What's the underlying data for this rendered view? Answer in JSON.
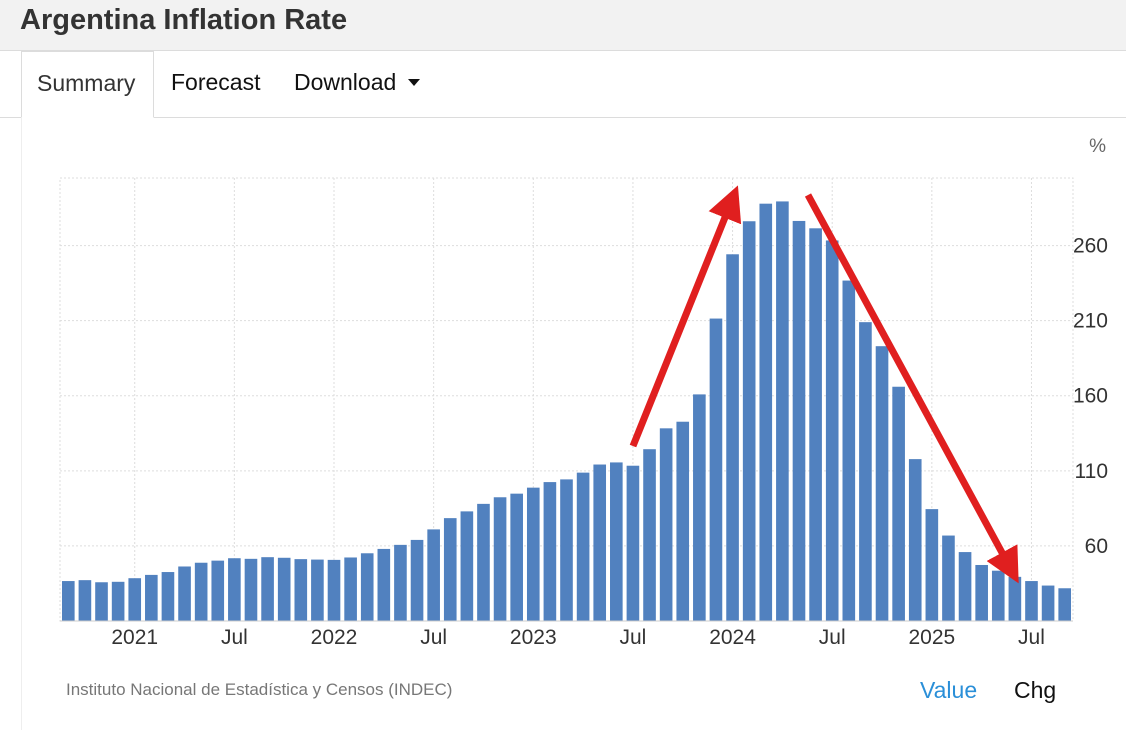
{
  "page": {
    "title": "Argentina Inflation Rate"
  },
  "tabs": {
    "summary": "Summary",
    "forecast": "Forecast",
    "download": "Download"
  },
  "footer": {
    "source": "Instituto Nacional de Estadística y Censos (INDEC)",
    "value_toggle": "Value",
    "chg_toggle": "Chg"
  },
  "colors": {
    "bar": "#5181bf",
    "arrow": "#e01f1f",
    "grid": "#dddddd",
    "value_link": "#2a8fd8"
  },
  "chart_data": {
    "type": "bar",
    "title": "Argentina Inflation Rate",
    "unit_label": "%",
    "ylabel": "%",
    "xlabel": "",
    "ylim": [
      10,
      305
    ],
    "yticks": [
      60,
      110,
      160,
      210,
      260
    ],
    "x_tick_labels": [
      {
        "label": "2021",
        "index": 4
      },
      {
        "label": "Jul",
        "index": 10
      },
      {
        "label": "2022",
        "index": 16
      },
      {
        "label": "Jul",
        "index": 22
      },
      {
        "label": "2023",
        "index": 28
      },
      {
        "label": "Jul",
        "index": 34
      },
      {
        "label": "2024",
        "index": 40
      },
      {
        "label": "Jul",
        "index": 46
      },
      {
        "label": "2025",
        "index": 52
      },
      {
        "label": "Jul",
        "index": 58
      }
    ],
    "categories": [
      "Sep 2020",
      "Oct 2020",
      "Nov 2020",
      "Dec 2020",
      "Jan 2021",
      "Feb 2021",
      "Mar 2021",
      "Apr 2021",
      "May 2021",
      "Jun 2021",
      "Jul 2021",
      "Aug 2021",
      "Sep 2021",
      "Oct 2021",
      "Nov 2021",
      "Dec 2021",
      "Jan 2022",
      "Feb 2022",
      "Mar 2022",
      "Apr 2022",
      "May 2022",
      "Jun 2022",
      "Jul 2022",
      "Aug 2022",
      "Sep 2022",
      "Oct 2022",
      "Nov 2022",
      "Dec 2022",
      "Jan 2023",
      "Feb 2023",
      "Mar 2023",
      "Apr 2023",
      "May 2023",
      "Jun 2023",
      "Jul 2023",
      "Aug 2023",
      "Sep 2023",
      "Oct 2023",
      "Nov 2023",
      "Dec 2023",
      "Jan 2024",
      "Feb 2024",
      "Mar 2024",
      "Apr 2024",
      "May 2024",
      "Jun 2024",
      "Jul 2024",
      "Aug 2024",
      "Sep 2024",
      "Oct 2024",
      "Nov 2024",
      "Dec 2024",
      "Jan 2025",
      "Feb 2025",
      "Mar 2025",
      "Apr 2025",
      "May 2025",
      "Jun 2025",
      "Jul 2025",
      "Aug 2025",
      "Sep 2025"
    ],
    "values": [
      36.6,
      37.2,
      35.8,
      36.1,
      38.5,
      40.7,
      42.6,
      46.3,
      48.8,
      50.2,
      51.8,
      51.4,
      52.5,
      52.1,
      51.2,
      50.9,
      50.7,
      52.3,
      55.1,
      58.0,
      60.7,
      64.0,
      71.0,
      78.5,
      83.0,
      88.0,
      92.4,
      94.8,
      98.8,
      102.5,
      104.3,
      108.8,
      114.2,
      115.6,
      113.4,
      124.4,
      138.3,
      142.7,
      160.9,
      211.4,
      254.2,
      276.2,
      287.9,
      289.4,
      276.4,
      271.5,
      263.4,
      236.7,
      209.0,
      193.0,
      166.0,
      117.8,
      84.5,
      66.9,
      55.9,
      47.3,
      43.5,
      39.4,
      36.6,
      33.6,
      31.8
    ],
    "annotations": [
      {
        "type": "arrow",
        "direction": "up",
        "label": ""
      },
      {
        "type": "arrow",
        "direction": "down",
        "label": ""
      }
    ]
  }
}
